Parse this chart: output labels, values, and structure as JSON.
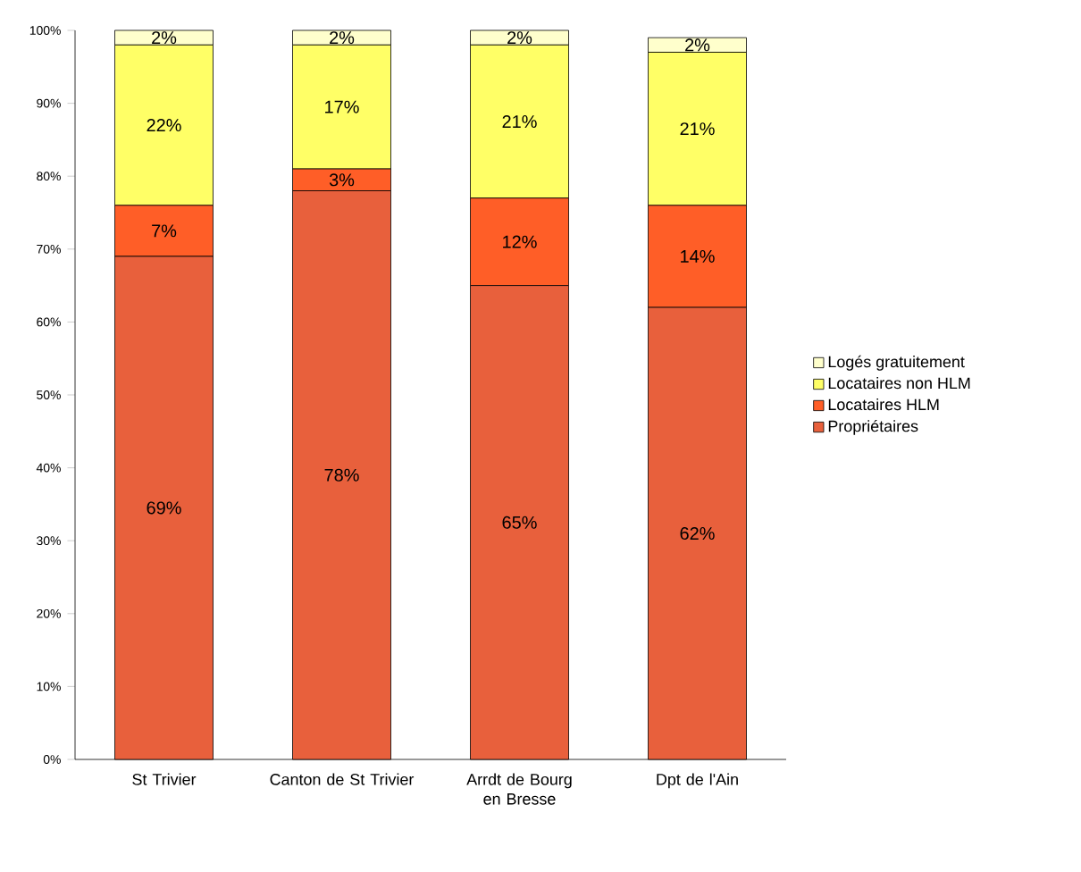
{
  "chart_data": {
    "type": "bar",
    "stacked": true,
    "categories": [
      "St Trivier",
      "Canton de St Trivier",
      "Arrdt de Bourg en Bresse",
      "Dpt de l'Ain"
    ],
    "series": [
      {
        "name": "Propriétaires",
        "color": "#e8603c",
        "values": [
          69,
          78,
          65,
          62
        ],
        "value_labels": [
          "69%",
          "78%",
          "65%",
          "62%"
        ]
      },
      {
        "name": "Locataires HLM",
        "color": "#ff5e27",
        "values": [
          7,
          3,
          12,
          14
        ],
        "value_labels": [
          "7%",
          "3%",
          "12%",
          "14%"
        ]
      },
      {
        "name": "Locataires non HLM",
        "color": "#ffff66",
        "values": [
          22,
          17,
          21,
          21
        ],
        "value_labels": [
          "22%",
          "17%",
          "21%",
          "21%"
        ]
      },
      {
        "name": "Logés gratuitement",
        "color": "#ffffcc",
        "values": [
          2,
          2,
          2,
          2
        ],
        "value_labels": [
          "2%",
          "2%",
          "2%",
          "2%"
        ]
      }
    ],
    "ylim": [
      0,
      100
    ],
    "yticks": [
      {
        "value": 0,
        "label": "0%"
      },
      {
        "value": 10,
        "label": "10%"
      },
      {
        "value": 20,
        "label": "20%"
      },
      {
        "value": 30,
        "label": "30%"
      },
      {
        "value": 40,
        "label": "40%"
      },
      {
        "value": 50,
        "label": "50%"
      },
      {
        "value": 60,
        "label": "60%"
      },
      {
        "value": 70,
        "label": "70%"
      },
      {
        "value": 80,
        "label": "80%"
      },
      {
        "value": 90,
        "label": "90%"
      },
      {
        "value": 100,
        "label": "100%"
      }
    ],
    "legend": "right"
  }
}
